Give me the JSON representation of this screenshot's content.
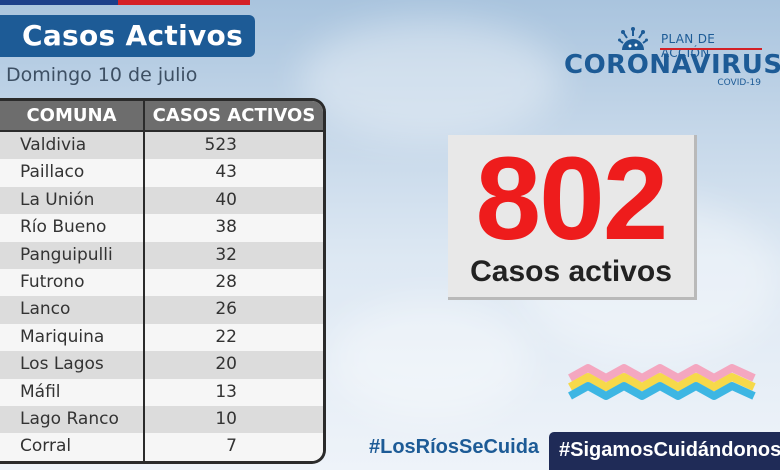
{
  "header": {
    "title": "Casos Activos",
    "date": "Domingo 10 de julio"
  },
  "table": {
    "columns": [
      "COMUNA",
      "CASOS ACTIVOS"
    ],
    "rows": [
      {
        "comuna": "Valdivia",
        "casos": "523"
      },
      {
        "comuna": "Paillaco",
        "casos": "43"
      },
      {
        "comuna": "La Unión",
        "casos": "40"
      },
      {
        "comuna": "Río Bueno",
        "casos": "38"
      },
      {
        "comuna": "Panguipulli",
        "casos": "32"
      },
      {
        "comuna": "Futrono",
        "casos": "28"
      },
      {
        "comuna": "Lanco",
        "casos": "26"
      },
      {
        "comuna": "Mariquina",
        "casos": "22"
      },
      {
        "comuna": "Los Lagos",
        "casos": "20"
      },
      {
        "comuna": "Máfil",
        "casos": "13"
      },
      {
        "comuna": "Lago Ranco",
        "casos": "10"
      },
      {
        "comuna": "Corral",
        "casos": "7"
      }
    ]
  },
  "logo": {
    "plan": "PLAN DE ACCIÓN",
    "name": "CORONAVIRUS",
    "sub": "COVID-19"
  },
  "total": {
    "value": "802",
    "label": "Casos activos"
  },
  "hashtags": {
    "primary": "#LosRíosSeCuida",
    "secondary": "#SigamosCuidándonos"
  },
  "colors": {
    "accent_blue": "#1d5b96",
    "accent_red": "#ee1c1c",
    "dark_navy": "#1f2b57"
  },
  "icons": {
    "logo_mark": "virus-sun-icon",
    "wave_mark": "colored-waves-icon"
  }
}
